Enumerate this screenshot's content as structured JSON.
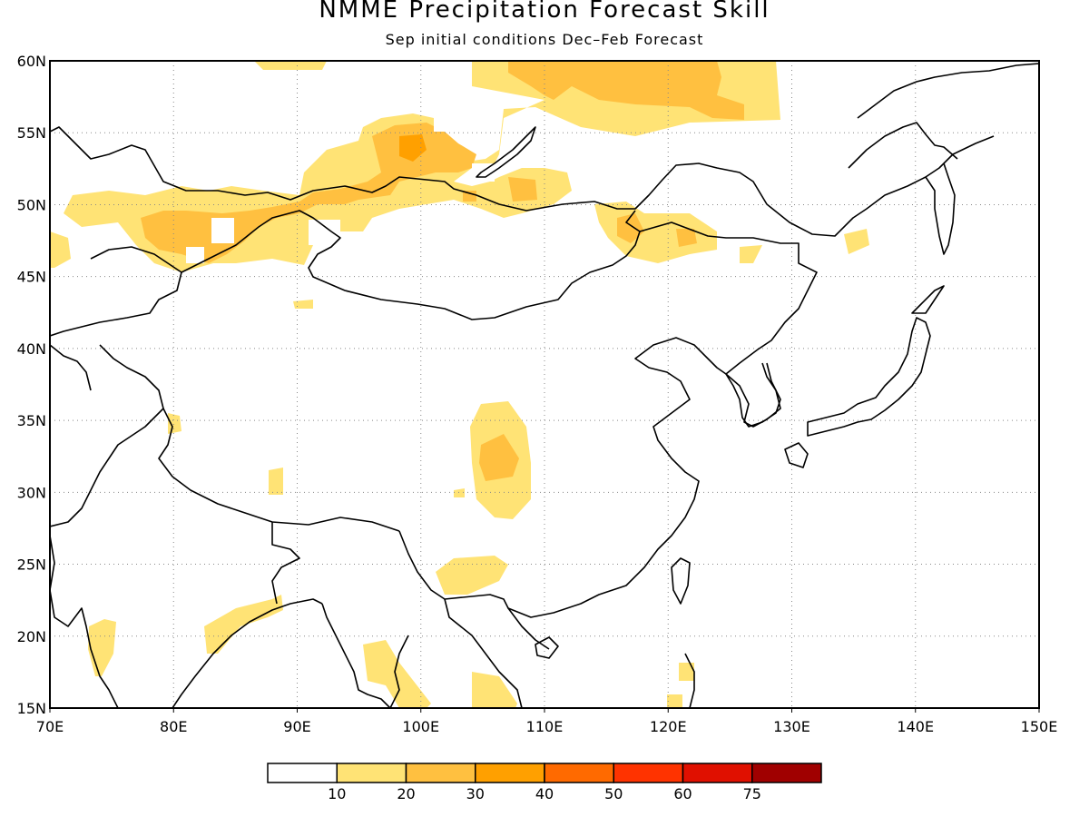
{
  "header": {
    "title": "NMME Precipitation Forecast Skill",
    "subtitle": "Sep initial conditions  Dec–Feb Forecast"
  },
  "map": {
    "lon_range": [
      70,
      150
    ],
    "lat_range": [
      15,
      60
    ],
    "lon_ticks": [
      "70E",
      "80E",
      "90E",
      "100E",
      "110E",
      "120E",
      "130E",
      "140E",
      "150E"
    ],
    "lat_ticks": [
      "15N",
      "20N",
      "25N",
      "30N",
      "35N",
      "40N",
      "45N",
      "50N",
      "55N",
      "60N"
    ],
    "grid": true
  },
  "colorbar": {
    "colors": [
      "#ffffff",
      "#ffe375",
      "#ffc040",
      "#ffa000",
      "#ff6a00",
      "#ff3300",
      "#e01000",
      "#a00000"
    ],
    "labels": [
      "10",
      "20",
      "30",
      "40",
      "50",
      "60",
      "75"
    ]
  }
}
